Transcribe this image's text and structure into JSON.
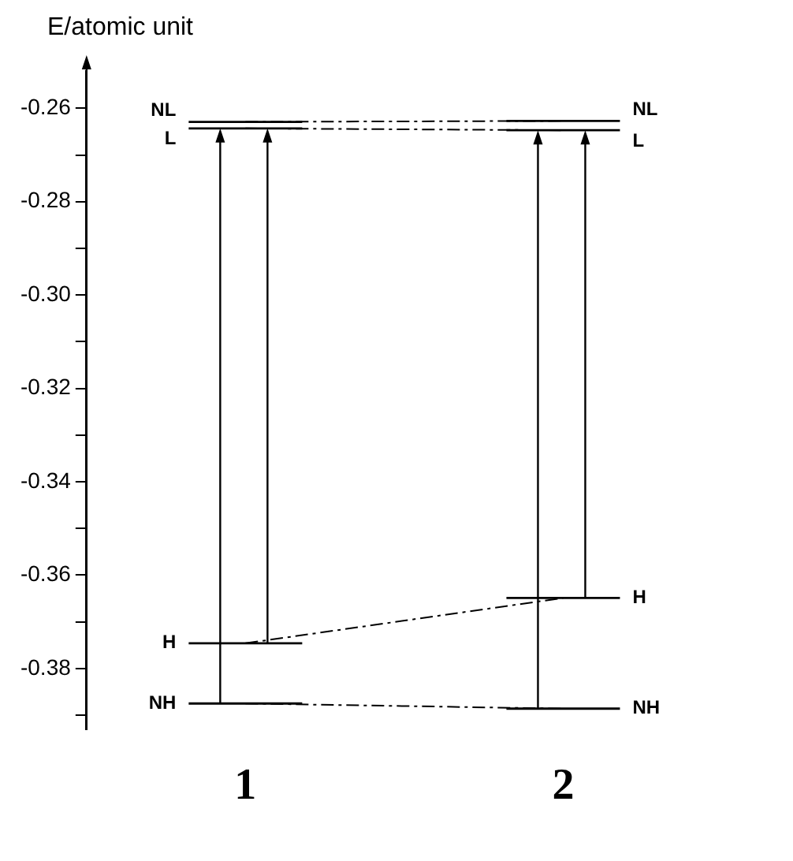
{
  "chart_data": {
    "type": "line",
    "ylabel": "E/atomic unit",
    "categories": [
      "1",
      "2"
    ],
    "series": [
      {
        "name": "NL",
        "color": "#000000",
        "values": [
          -0.2629,
          -0.2627
        ]
      },
      {
        "name": "L",
        "color": "#000000",
        "values": [
          -0.2643,
          -0.2647
        ]
      },
      {
        "name": "H",
        "color": "#000000",
        "values": [
          -0.3746,
          -0.3649
        ]
      },
      {
        "name": "NH",
        "color": "#000000",
        "values": [
          -0.3875,
          -0.3886
        ]
      }
    ],
    "ylim": [
      -0.393,
      -0.252
    ],
    "yticks": [
      {
        "value": -0.26,
        "label": "-0.26"
      },
      {
        "value": -0.27,
        "label": null
      },
      {
        "value": -0.28,
        "label": "-0.28"
      },
      {
        "value": -0.29,
        "label": null
      },
      {
        "value": -0.3,
        "label": "-0.30"
      },
      {
        "value": -0.31,
        "label": null
      },
      {
        "value": -0.32,
        "label": "-0.32"
      },
      {
        "value": -0.33,
        "label": null
      },
      {
        "value": -0.34,
        "label": "-0.34"
      },
      {
        "value": -0.35,
        "label": null
      },
      {
        "value": -0.36,
        "label": "-0.36"
      },
      {
        "value": -0.37,
        "label": null
      },
      {
        "value": -0.38,
        "label": "-0.38"
      },
      {
        "value": -0.39,
        "label": null
      }
    ],
    "grid": false,
    "legend": false,
    "line_style": "dashed"
  }
}
